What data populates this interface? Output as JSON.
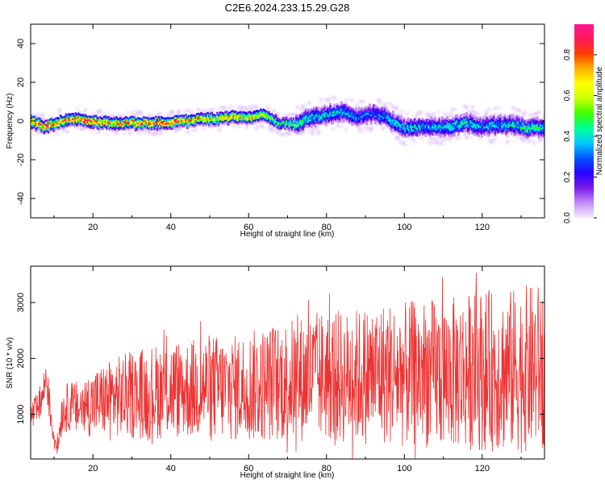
{
  "figure": {
    "title": "C2E6.2024.233.15.29.G28"
  },
  "chart_data": [
    {
      "type": "heatmap",
      "xlabel": "Height of straight line (km)",
      "ylabel": "Frequency (Hz)",
      "xlim": [
        4,
        136
      ],
      "ylim": [
        -50,
        50
      ],
      "xticks": [
        20,
        40,
        60,
        80,
        100,
        120
      ],
      "yticks": [
        -40,
        -20,
        0,
        20,
        40
      ],
      "grid": false,
      "colorbar": {
        "label": "Normalized spectral amplitude",
        "range": [
          0,
          0.95
        ],
        "ticks": [
          "0.0",
          "0.2",
          "0.4",
          "0.6",
          "0.8"
        ],
        "tick_values": [
          0,
          0.2,
          0.4,
          0.6,
          0.8
        ],
        "colors": [
          "#f4ecfb",
          "#c58df5",
          "#7a1de8",
          "#2a00ff",
          "#0055ff",
          "#00c8ff",
          "#00ff9a",
          "#3cff00",
          "#c8ff00",
          "#ffff00",
          "#ffb400",
          "#ff3c00",
          "#ff1a5a",
          "#ff1493"
        ]
      },
      "ridge": {
        "x": [
          4,
          8,
          12,
          16,
          20,
          24,
          28,
          32,
          36,
          40,
          44,
          48,
          52,
          56,
          60,
          64,
          68,
          72,
          76,
          80,
          84,
          88,
          92,
          96,
          100,
          104,
          108,
          112,
          116,
          120,
          124,
          128,
          132,
          136
        ],
        "y": [
          0,
          -3,
          0,
          1,
          0,
          -1,
          -1,
          -1,
          -1,
          -1,
          0,
          1,
          1,
          2,
          2,
          3,
          -1,
          -2,
          2,
          3,
          5,
          2,
          4,
          1,
          -4,
          -3,
          -3,
          -3,
          -1,
          -3,
          -2,
          -2,
          -4,
          -3
        ],
        "peak": [
          0.9,
          0.95,
          0.85,
          0.9,
          0.95,
          0.8,
          0.85,
          0.9,
          0.85,
          0.95,
          0.9,
          0.75,
          0.7,
          0.8,
          0.75,
          0.7,
          0.5,
          0.55,
          0.45,
          0.4,
          0.4,
          0.35,
          0.35,
          0.4,
          0.45,
          0.4,
          0.4,
          0.45,
          0.45,
          0.4,
          0.4,
          0.45,
          0.5,
          0.45
        ]
      }
    },
    {
      "type": "line",
      "xlabel": "Height of straight line (km)",
      "ylabel": "SNR (10 * v/v)",
      "xlim": [
        4,
        136
      ],
      "ylim": [
        200,
        3650
      ],
      "xticks": [
        20,
        40,
        60,
        80,
        100,
        120
      ],
      "yticks": [
        1000,
        2000,
        3000
      ],
      "grid": false,
      "color": "#ee3333",
      "series": [
        {
          "x": [
            4,
            6,
            7,
            8,
            9,
            10,
            11,
            12,
            14,
            16,
            20,
            25,
            30,
            35,
            40,
            45,
            50,
            55,
            60,
            65,
            70,
            75,
            80,
            85,
            90,
            95,
            100,
            105,
            110,
            115,
            120,
            125,
            130,
            135,
            136
          ],
          "values": [
            950,
            1100,
            1300,
            1700,
            1050,
            600,
            450,
            1050,
            1150,
            1100,
            1200,
            1300,
            1350,
            1400,
            1450,
            1450,
            1500,
            1450,
            1500,
            1550,
            1600,
            1650,
            1700,
            1650,
            1700,
            1750,
            1700,
            1750,
            1700,
            1750,
            1800,
            1750,
            1800,
            1850,
            1900
          ],
          "envelope": [
            300,
            300,
            300,
            400,
            300,
            250,
            200,
            400,
            450,
            500,
            600,
            700,
            800,
            850,
            900,
            900,
            950,
            950,
            1000,
            1050,
            1100,
            1150,
            1200,
            1200,
            1250,
            1300,
            1300,
            1350,
            1350,
            1400,
            1450,
            1450,
            1500,
            1500,
            1500
          ]
        }
      ]
    }
  ]
}
